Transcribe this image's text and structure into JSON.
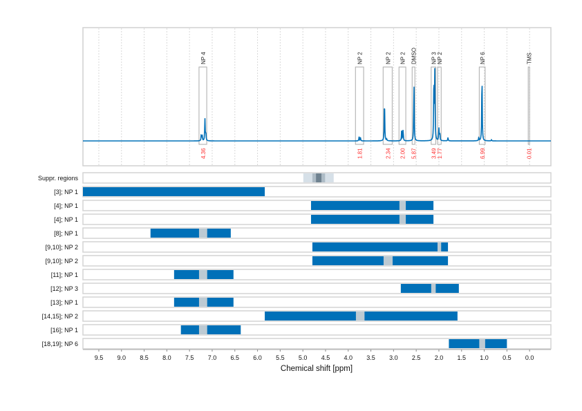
{
  "chart_data": {
    "type": "nmr-spectrum-with-region-bars",
    "xlabel": "Chemical shift [ppm]",
    "xlim": [
      9.85,
      -0.47
    ],
    "xticks": [
      "9.5",
      "9.0",
      "8.5",
      "8.0",
      "7.5",
      "7.0",
      "6.5",
      "6.0",
      "5.5",
      "5.0",
      "4.5",
      "4.0",
      "3.5",
      "3.0",
      "2.5",
      "2.0",
      "1.5",
      "1.0",
      "0.5",
      "0.0"
    ],
    "grid": true,
    "colors": {
      "spectrum": "#0070b8",
      "bar": "#0070b8",
      "gap": "#bccad3",
      "integral": "#ff3030",
      "box": "#aaaaaa"
    },
    "peaks": [
      {
        "ppm": 7.24,
        "height": 10
      },
      {
        "ppm": 7.22,
        "height": 8
      },
      {
        "ppm": 7.16,
        "height": 32
      },
      {
        "ppm": 7.14,
        "height": 12
      },
      {
        "ppm": 3.76,
        "height": 6
      },
      {
        "ppm": 3.73,
        "height": 5
      },
      {
        "ppm": 3.2,
        "height": 65
      },
      {
        "ppm": 3.15,
        "height": 2
      },
      {
        "ppm": 2.82,
        "height": 17
      },
      {
        "ppm": 2.79,
        "height": 17
      },
      {
        "ppm": 2.55,
        "height": 85
      },
      {
        "ppm": 2.11,
        "height": 97
      },
      {
        "ppm": 2.09,
        "height": 99
      },
      {
        "ppm": 2.0,
        "height": 18
      },
      {
        "ppm": 1.98,
        "height": 12
      },
      {
        "ppm": 1.8,
        "height": 5
      },
      {
        "ppm": 1.12,
        "height": 5
      },
      {
        "ppm": 1.05,
        "height": 103
      },
      {
        "ppm": 0.84,
        "height": 1.5
      }
    ],
    "annotations": [
      {
        "label": "NP 4",
        "from": 7.29,
        "to": 7.12,
        "integral": "4.36"
      },
      {
        "label": "NP 2",
        "from": 3.84,
        "to": 3.66,
        "integral": "1.81"
      },
      {
        "label": "NP 2",
        "from": 3.23,
        "to": 3.03,
        "integral": "2.34"
      },
      {
        "label": "NP 2",
        "from": 2.88,
        "to": 2.73,
        "integral": "2.00"
      },
      {
        "label": "DMSO",
        "from": 2.59,
        "to": 2.53,
        "integral": "5.87"
      },
      {
        "label": "NP 3",
        "from": 2.17,
        "to": 2.07,
        "integral": "3.49"
      },
      {
        "label": "NP 2",
        "from": 2.03,
        "to": 1.95,
        "integral": "1.77"
      },
      {
        "label": "NP 6",
        "from": 1.11,
        "to": 0.98,
        "integral": "6.99"
      },
      {
        "label": "TMS",
        "from": 0.03,
        "to": 0.0,
        "integral": "0.01"
      }
    ],
    "suppressed_regions": {
      "label": "Suppr. regions",
      "bands": [
        {
          "from": 4.99,
          "to": 4.32,
          "shade": "#d6e0e8"
        },
        {
          "from": 4.79,
          "to": 4.51,
          "shade": "#aebcc6"
        },
        {
          "from": 4.71,
          "to": 4.59,
          "shade": "#6f8290"
        }
      ]
    },
    "rows": [
      {
        "label": "[3]; NP 1",
        "from": 9.85,
        "to": 5.84,
        "gap": null
      },
      {
        "label": "[4]; NP 1",
        "from": 4.82,
        "to": 2.12,
        "gap": [
          2.87,
          2.73
        ]
      },
      {
        "label": "[4]; NP 1",
        "from": 4.82,
        "to": 2.12,
        "gap": [
          2.87,
          2.73
        ]
      },
      {
        "label": "[8]; NP 1",
        "from": 8.36,
        "to": 6.59,
        "gap": [
          7.29,
          7.11
        ]
      },
      {
        "label": "[9,10]; NP 2",
        "from": 4.79,
        "to": 1.8,
        "gap": [
          2.03,
          1.95
        ]
      },
      {
        "label": "[9,10]; NP 2",
        "from": 4.79,
        "to": 1.8,
        "gap": [
          3.22,
          3.02
        ]
      },
      {
        "label": "[11]; NP 1",
        "from": 7.84,
        "to": 6.53,
        "gap": [
          7.29,
          7.11
        ]
      },
      {
        "label": "[12]; NP 3",
        "from": 2.84,
        "to": 1.56,
        "gap": [
          2.17,
          2.07
        ]
      },
      {
        "label": "[13]; NP 1",
        "from": 7.84,
        "to": 6.53,
        "gap": [
          7.29,
          7.11
        ]
      },
      {
        "label": "[14,15]; NP 2",
        "from": 5.84,
        "to": 1.59,
        "gap": [
          3.83,
          3.64
        ]
      },
      {
        "label": "[16]; NP 1",
        "from": 7.69,
        "to": 6.37,
        "gap": [
          7.29,
          7.11
        ]
      },
      {
        "label": "[18,19]; NP 6",
        "from": 1.78,
        "to": 0.5,
        "gap": [
          1.11,
          0.98
        ]
      }
    ]
  }
}
